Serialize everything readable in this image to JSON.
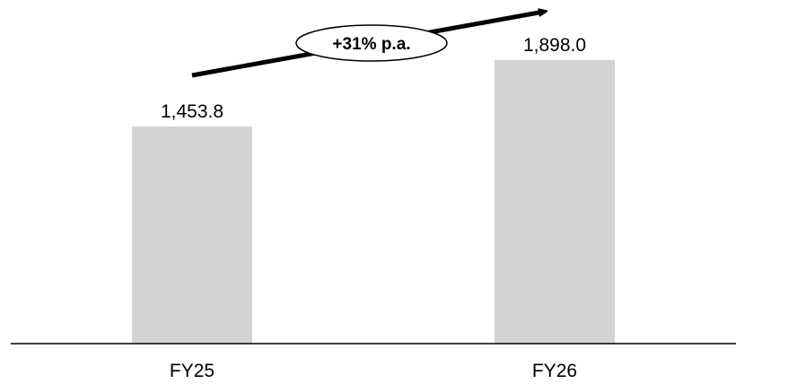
{
  "chart_data": {
    "type": "bar",
    "categories": [
      "FY25",
      "FY26"
    ],
    "values": [
      1453.8,
      1898.0
    ],
    "value_labels": [
      "1,453.8",
      "1,898.0"
    ],
    "ylim": [
      0,
      2300
    ],
    "bar_color": "#d3d3d3",
    "axis_color": "#000000",
    "grid": false,
    "annotation": {
      "text": "+31% p.a.",
      "type": "growth-arrow"
    }
  }
}
